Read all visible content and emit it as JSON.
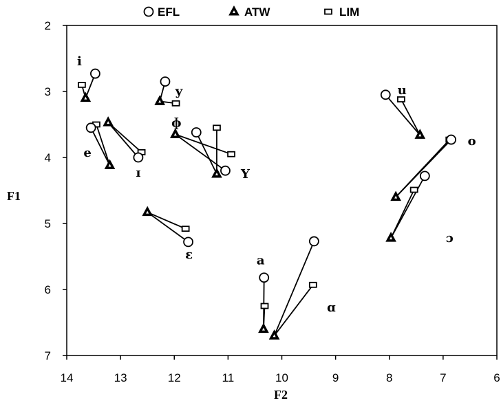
{
  "chart_data": {
    "type": "scatter",
    "title": "",
    "xlabel": "F2",
    "ylabel": "F1",
    "xlim": [
      14,
      6
    ],
    "ylim": [
      7,
      2
    ],
    "x_ticks": [
      "14",
      "13",
      "12",
      "11",
      "10",
      "9",
      "8",
      "7",
      "6"
    ],
    "y_ticks": [
      "2",
      "3",
      "4",
      "5",
      "6",
      "7"
    ],
    "grid": false,
    "legend_position": "top",
    "series": [
      {
        "key": "EFL",
        "name": "EFL",
        "marker": "circle"
      },
      {
        "key": "ATW",
        "name": "ATW",
        "marker": "triangle"
      },
      {
        "key": "LIM",
        "name": "LIM",
        "marker": "square"
      }
    ],
    "vowels": [
      {
        "label": "i",
        "EFL": [
          13.47,
          2.73
        ],
        "ATW": [
          13.65,
          3.1
        ],
        "LIM": [
          13.72,
          2.9
        ]
      },
      {
        "label": "y",
        "EFL": [
          12.17,
          2.85
        ],
        "ATW": [
          12.27,
          3.15
        ],
        "LIM": [
          11.97,
          3.18
        ]
      },
      {
        "label": "e",
        "EFL": [
          13.55,
          3.55
        ],
        "ATW": [
          13.2,
          4.12
        ],
        "LIM": [
          13.45,
          3.5
        ]
      },
      {
        "label": "ɪ",
        "EFL": [
          12.67,
          4.0
        ],
        "ATW": [
          13.23,
          3.47
        ],
        "LIM": [
          12.61,
          3.92
        ]
      },
      {
        "label": "ɸ",
        "EFL": [
          11.59,
          3.62
        ],
        "ATW": [
          11.21,
          4.25
        ],
        "LIM": [
          11.21,
          3.55
        ]
      },
      {
        "label": "Y",
        "EFL": [
          11.05,
          4.2
        ],
        "ATW": [
          11.98,
          3.65
        ],
        "LIM": [
          10.94,
          3.95
        ]
      },
      {
        "label": "ε",
        "EFL": [
          11.74,
          5.28
        ],
        "ATW": [
          12.5,
          4.83
        ],
        "LIM": [
          11.79,
          5.08
        ]
      },
      {
        "label": "u",
        "EFL": [
          8.07,
          3.05
        ],
        "ATW": [
          7.43,
          3.66
        ],
        "LIM": [
          7.78,
          3.12
        ]
      },
      {
        "label": "o",
        "EFL": [
          6.85,
          3.73
        ],
        "ATW": [
          7.88,
          4.6
        ],
        "LIM": [
          6.88,
          3.73
        ]
      },
      {
        "label": "ɔ",
        "EFL": [
          7.34,
          4.28
        ],
        "ATW": [
          7.97,
          5.22
        ],
        "LIM": [
          7.54,
          4.49
        ]
      },
      {
        "label": "a",
        "EFL": [
          10.33,
          5.82
        ],
        "ATW": [
          10.34,
          6.6
        ],
        "LIM": [
          10.32,
          6.25
        ]
      },
      {
        "label": "ɑ",
        "EFL": [
          9.4,
          5.27
        ],
        "ATW": [
          10.14,
          6.7
        ],
        "LIM": [
          9.42,
          5.93
        ]
      }
    ]
  }
}
